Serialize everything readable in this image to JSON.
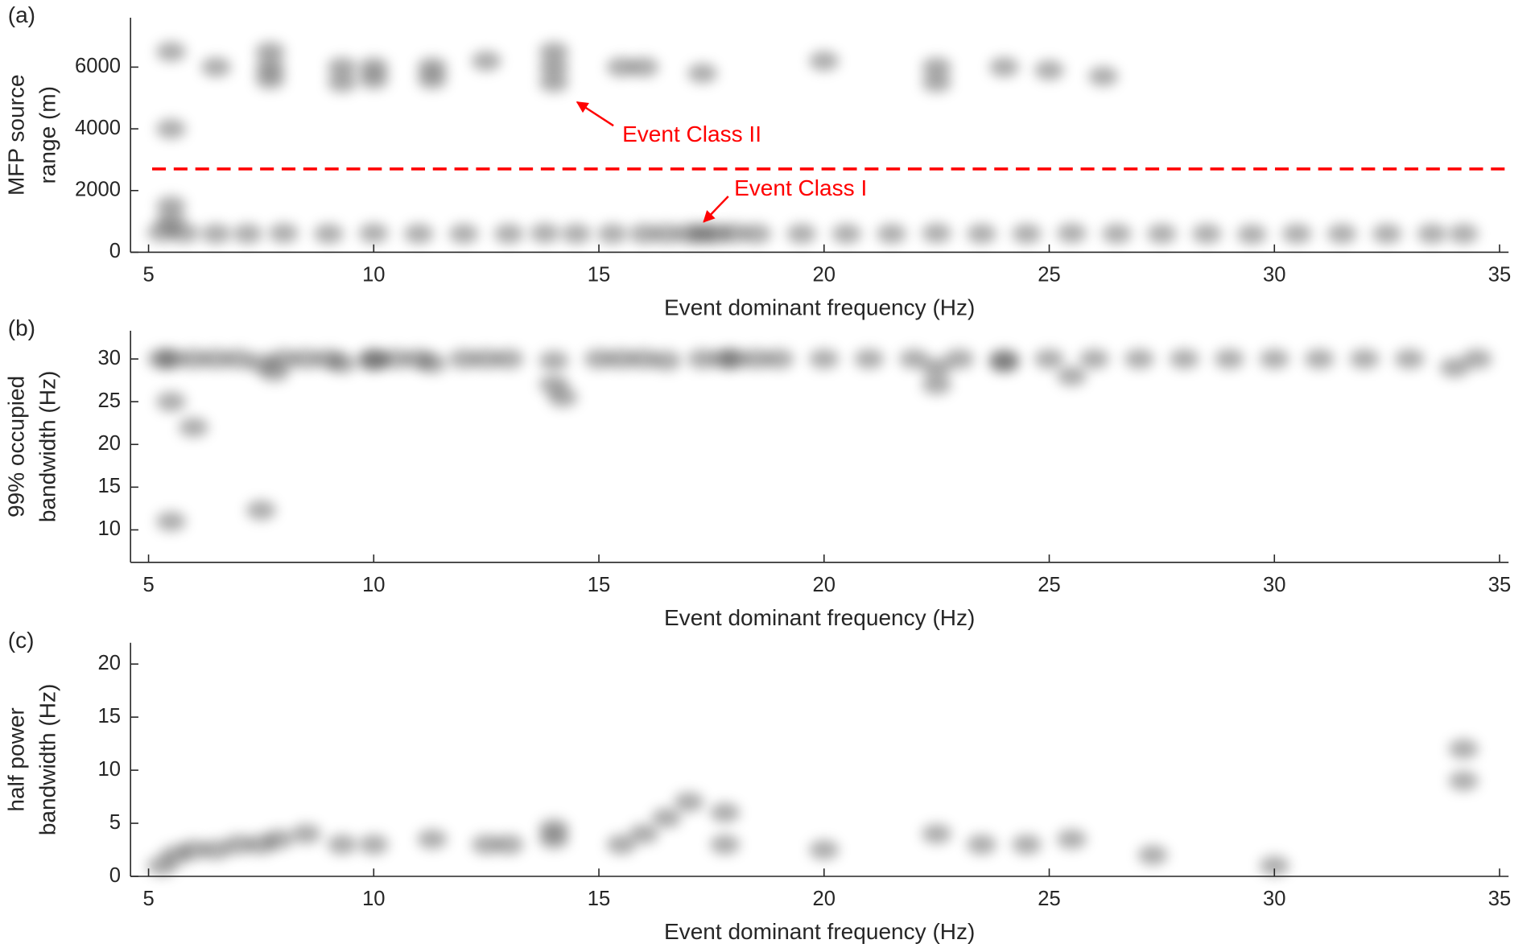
{
  "chart_data": [
    {
      "type": "scatter",
      "panel_label": "(a)",
      "xlabel": "Event dominant frequency (Hz)",
      "ylabel": [
        "MFP source",
        "range (m)"
      ],
      "xlim": [
        4.6,
        35.2
      ],
      "ylim": [
        0,
        7600
      ],
      "xticks": [
        5,
        10,
        15,
        20,
        25,
        30,
        35
      ],
      "yticks": [
        0,
        2000,
        4000,
        6000
      ],
      "hline": 2700,
      "hline_color": "#ff0000",
      "annotations": [
        "Event Class II",
        "Event Class I"
      ],
      "annotation_color": "#ff0000",
      "series": [
        {
          "color": "#000000",
          "x": [
            5.3,
            5.8,
            6.5,
            7.2,
            8,
            9,
            10,
            11,
            12,
            13,
            13.8,
            14.5,
            15.3,
            16,
            16.5,
            17,
            17.3,
            17.6,
            18,
            18.5,
            19.5,
            20.5,
            21.5,
            22.5,
            23.5,
            24.5,
            25.5,
            26.5,
            27.5,
            28.5,
            29.5,
            30.5,
            31.5,
            32.5,
            33.5,
            34.2,
            7.7,
            7.7,
            7.7,
            9.3,
            9.3,
            10,
            10,
            11.3,
            11.3,
            14,
            14,
            14,
            15.5,
            16,
            17.3,
            22.5,
            22.5,
            24,
            25,
            26.2,
            5.5,
            5.5,
            5.5,
            5.5,
            6.5,
            12.5,
            20
          ],
          "y": [
            650,
            620,
            600,
            600,
            620,
            600,
            620,
            600,
            600,
            600,
            620,
            600,
            600,
            600,
            600,
            600,
            600,
            600,
            620,
            600,
            600,
            600,
            600,
            620,
            600,
            600,
            620,
            600,
            600,
            600,
            580,
            600,
            600,
            600,
            600,
            600,
            6000,
            5600,
            6500,
            6000,
            5500,
            6000,
            5600,
            6000,
            5600,
            6000,
            5500,
            6500,
            6000,
            6000,
            5800,
            6000,
            5500,
            6000,
            5900,
            5700,
            4000,
            6500,
            1500,
            1000,
            6000,
            6200,
            6200
          ]
        }
      ]
    },
    {
      "type": "scatter",
      "panel_label": "(b)",
      "xlabel": "Event dominant frequency (Hz)",
      "ylabel": [
        "99% occupied",
        "bandwidth (Hz)"
      ],
      "xlim": [
        4.6,
        35.2
      ],
      "ylim": [
        6.2,
        33.3
      ],
      "xticks": [
        5,
        10,
        15,
        20,
        25,
        30,
        35
      ],
      "yticks": [
        10,
        15,
        20,
        25,
        30
      ],
      "series": [
        {
          "color": "#000000",
          "x": [
            5.3,
            6,
            6.5,
            7,
            8,
            8.5,
            9,
            10,
            10.5,
            11,
            12,
            12.5,
            13,
            15,
            15.5,
            16,
            18,
            18.5,
            19,
            20,
            21,
            22,
            23,
            24,
            25,
            26,
            27,
            28,
            29,
            30,
            31,
            32,
            33,
            34.5,
            5.5,
            7.5,
            7.8,
            9.3,
            10,
            11.3,
            14,
            14,
            14.2,
            16.5,
            17.3,
            17.8,
            22.5,
            22.5,
            24,
            25.5,
            34,
            5.5,
            7.5,
            6,
            5.5
          ],
          "y": [
            30,
            30,
            30,
            30,
            30,
            30,
            30,
            30,
            30,
            30,
            30,
            30,
            30,
            30,
            30,
            30,
            30,
            30,
            30,
            30,
            30,
            30,
            30,
            30,
            30,
            30,
            30,
            30,
            30,
            30,
            30,
            30,
            30,
            30,
            30,
            29.5,
            28.5,
            29.5,
            29.8,
            29.5,
            29.8,
            27,
            25.5,
            29.8,
            30,
            30,
            29,
            27,
            29.5,
            28,
            29,
            11,
            12.3,
            22,
            25
          ]
        }
      ]
    },
    {
      "type": "scatter",
      "panel_label": "(c)",
      "xlabel": "Event dominant frequency (Hz)",
      "ylabel": [
        "half power",
        "bandwidth (Hz)"
      ],
      "xlim": [
        4.6,
        35.2
      ],
      "ylim": [
        0,
        22
      ],
      "xticks": [
        5,
        10,
        15,
        20,
        25,
        30,
        35
      ],
      "yticks": [
        0,
        5,
        10,
        15,
        20
      ],
      "series": [
        {
          "color": "#000000",
          "x": [
            5.3,
            5.6,
            6,
            6.5,
            7,
            7.5,
            7.9,
            9.3,
            10,
            11.3,
            14,
            14,
            15.5,
            16,
            16.5,
            17,
            17.8,
            17.8,
            22.5,
            23.5,
            24.5,
            25.5,
            27.3,
            34.2,
            34.2,
            20,
            30,
            8.5,
            12.5,
            13
          ],
          "y": [
            1,
            2,
            2.5,
            2.5,
            3,
            3,
            3.5,
            3,
            3,
            3.5,
            3.5,
            4.5,
            3,
            4,
            5.5,
            7,
            6,
            3,
            4,
            3,
            3,
            3.5,
            2,
            9,
            12,
            2.5,
            1,
            4,
            3,
            3
          ]
        }
      ]
    }
  ]
}
